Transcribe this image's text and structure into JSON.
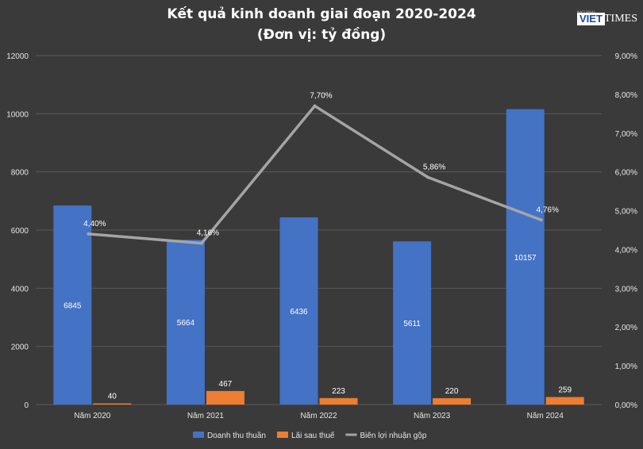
{
  "chart_data": {
    "type": "bar",
    "title": "Kết quả kinh doanh giai đoạn 2020-2024",
    "subtitle": "(Đơn vị: tỷ đồng)",
    "categories": [
      "Năm 2020",
      "Năm 2021",
      "Năm 2022",
      "Năm 2023",
      "Năm 2024"
    ],
    "series": [
      {
        "name": "Doanh thu thuần",
        "type": "bar",
        "axis": "left",
        "color": "#4472c4",
        "values": [
          6845,
          5664,
          6436,
          5611,
          10157
        ],
        "labels": [
          "6845",
          "5664",
          "6436",
          "5611",
          "10157"
        ]
      },
      {
        "name": "Lãi sau thuế",
        "type": "bar",
        "axis": "left",
        "color": "#ed7d31",
        "values": [
          40,
          467,
          223,
          220,
          259
        ],
        "labels": [
          "40",
          "467",
          "223",
          "220",
          "259"
        ]
      },
      {
        "name": "Biên lợi nhuận gộp",
        "type": "line",
        "axis": "right",
        "color": "#a5a5a5",
        "values": [
          4.4,
          4.16,
          7.7,
          5.86,
          4.76
        ],
        "labels": [
          "4,40%",
          "4,16%",
          "7,70%",
          "5,86%",
          "4,76%"
        ]
      }
    ],
    "y_left": {
      "ylim": [
        0,
        12000
      ],
      "ticks": [
        "0",
        "2000",
        "4000",
        "6000",
        "8000",
        "10000",
        "12000"
      ]
    },
    "y_right": {
      "ylim": [
        0,
        9
      ],
      "ticks": [
        "0,00%",
        "1,00%",
        "2,00%",
        "3,00%",
        "4,00%",
        "5,00%",
        "6,00%",
        "7,00%",
        "8,00%",
        "9,00%"
      ]
    },
    "grid": true,
    "legend": "bottom"
  },
  "logo": {
    "main": "VIET",
    "rest": "TIMES",
    "sub": "NATIONAL"
  }
}
